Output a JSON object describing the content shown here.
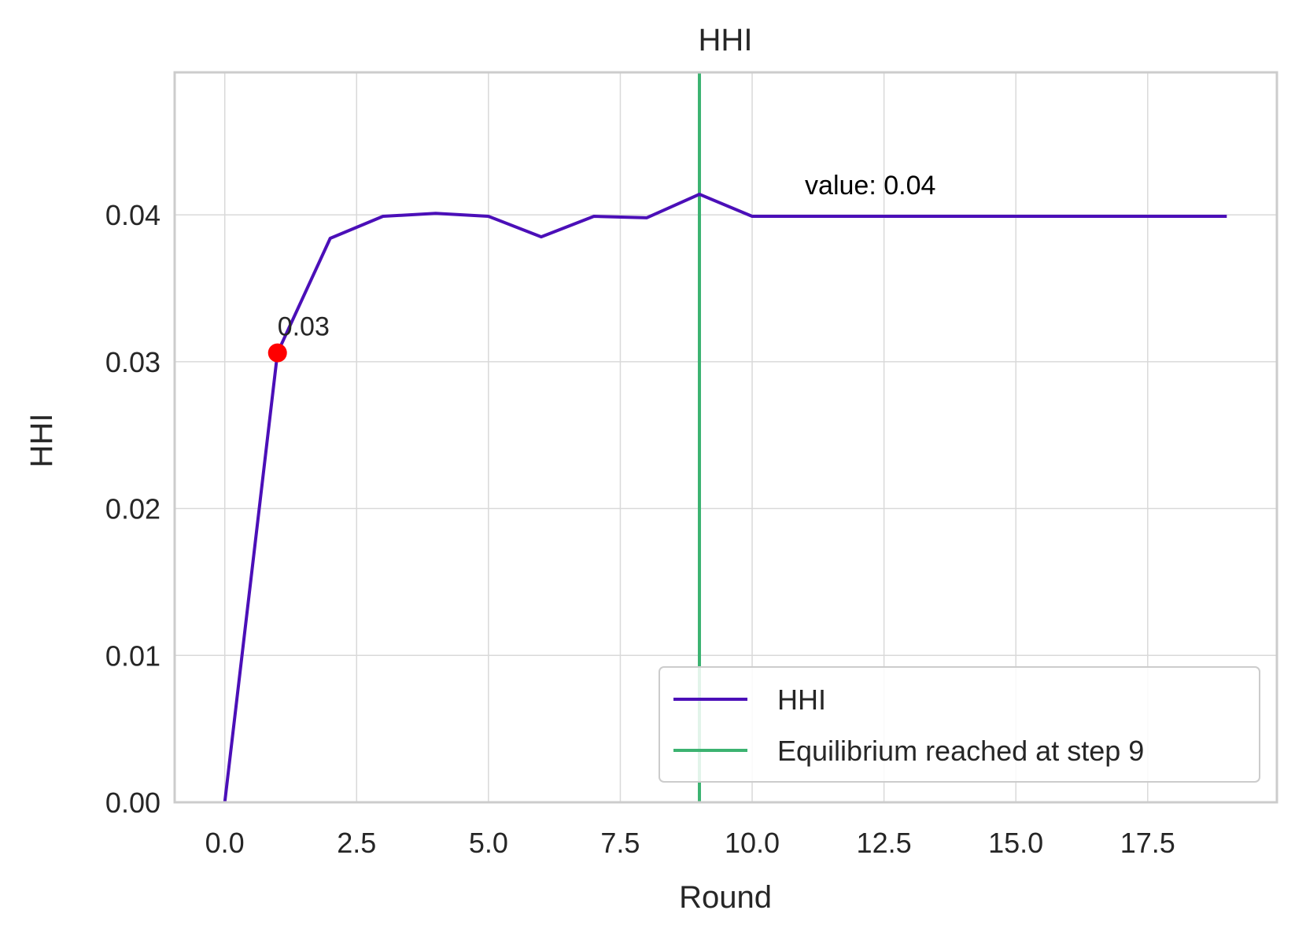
{
  "chart_data": {
    "type": "line",
    "title": "HHI",
    "xlabel": "Round",
    "ylabel": "HHI",
    "xlim": [
      -0.95,
      19.95
    ],
    "ylim": [
      0,
      0.0497
    ],
    "xticks": [
      0.0,
      2.5,
      5.0,
      7.5,
      10.0,
      12.5,
      15.0,
      17.5
    ],
    "xtick_labels": [
      "0.0",
      "2.5",
      "5.0",
      "7.5",
      "10.0",
      "12.5",
      "15.0",
      "17.5"
    ],
    "yticks": [
      0.0,
      0.01,
      0.02,
      0.03,
      0.04
    ],
    "ytick_labels": [
      "0.00",
      "0.01",
      "0.02",
      "0.03",
      "0.04"
    ],
    "grid": true,
    "legend_position": "lower-right",
    "series": [
      {
        "name": "HHI",
        "color": "#4b0fb8",
        "x": [
          0,
          1,
          2,
          3,
          4,
          5,
          6,
          7,
          8,
          9,
          10,
          11,
          12,
          13,
          14,
          15,
          16,
          17,
          18,
          19
        ],
        "y": [
          0.0,
          0.0306,
          0.0384,
          0.0399,
          0.0401,
          0.0399,
          0.0385,
          0.0399,
          0.0398,
          0.0414,
          0.0399,
          0.0399,
          0.0399,
          0.0399,
          0.0399,
          0.0399,
          0.0399,
          0.0399,
          0.0399,
          0.0399
        ]
      }
    ],
    "vline": {
      "name": "Equilibrium reached at step 9",
      "x": 9,
      "color": "#3cb371"
    },
    "highlight_point": {
      "x": 1,
      "y": 0.0306,
      "label": "0.03",
      "color": "#ff0000"
    },
    "annotation": {
      "text": "value: 0.04",
      "x": 11,
      "y": 0.0414
    }
  }
}
